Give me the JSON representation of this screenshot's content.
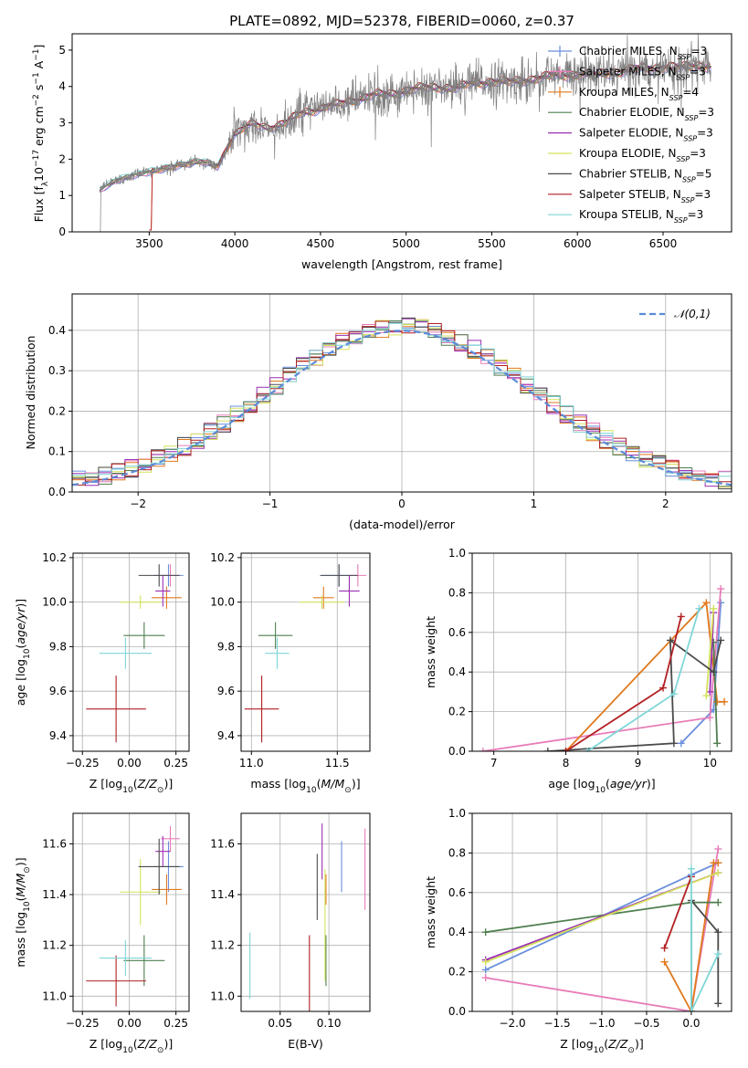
{
  "figure_title": "PLATE=0892, MJD=52378, FIBERID=0060, z=0.37",
  "colors": {
    "Chabrier MILES": "#6a8fdc",
    "Salpeter MILES": "#e87cb8",
    "Kroupa MILES": "#e0791d",
    "Chabrier ELODIE": "#4f7f4f",
    "Salpeter ELODIE": "#9b2fb3",
    "Kroupa ELODIE": "#d4e25a",
    "Chabrier STELIB": "#4a4a4a",
    "Salpeter STELIB": "#b21f22",
    "Kroupa STELIB": "#7fd6d6",
    "data": "#808080",
    "normal": "#5b8bd9",
    "grid": "#b0b0b0"
  },
  "chart_data": [
    {
      "id": "spectrum",
      "type": "line",
      "title": "PLATE=0892, MJD=52378, FIBERID=0060, z=0.37",
      "xlabel": "wavelength [Angstrom, rest frame]",
      "ylabel": "Flux [f_λ 10^-17 erg cm^-2 s^-1 A^-1]",
      "xlim": [
        3050,
        6900
      ],
      "ylim": [
        0,
        5.45
      ],
      "xticks": [
        3500,
        4000,
        4500,
        5000,
        5500,
        6000,
        6500
      ],
      "yticks": [
        0,
        1,
        2,
        3,
        4,
        5
      ],
      "grid": false,
      "legend_position": "top-right",
      "continuum": {
        "x": [
          3210,
          3300,
          3400,
          3500,
          3600,
          3700,
          3800,
          3900,
          4000,
          4100,
          4200,
          4300,
          4400,
          4500,
          4600,
          4700,
          4800,
          4900,
          5000,
          5100,
          5200,
          5300,
          5400,
          5500,
          5600,
          5700,
          5800,
          5900,
          6000,
          6100,
          6200,
          6300,
          6400,
          6500,
          6600,
          6700,
          6780
        ],
        "y": [
          1.15,
          1.4,
          1.55,
          1.65,
          1.75,
          1.85,
          1.95,
          1.8,
          2.7,
          2.95,
          2.9,
          3.0,
          3.3,
          3.4,
          3.5,
          3.65,
          3.75,
          3.8,
          3.9,
          3.95,
          4.0,
          3.95,
          4.1,
          4.15,
          4.1,
          4.2,
          4.25,
          4.3,
          4.35,
          4.3,
          4.4,
          4.45,
          4.5,
          4.55,
          4.5,
          4.6,
          4.55
        ]
      },
      "series": [
        {
          "name": "Chabrier MILES, N_SSP=3",
          "label_main": "Chabrier MILES, N",
          "label_sub": "SSP",
          "label_tail": "=3"
        },
        {
          "name": "Salpeter MILES, N_SSP=3",
          "label_main": "Salpeter MILES, N",
          "label_sub": "SSP",
          "label_tail": "=3"
        },
        {
          "name": "Kroupa MILES, N_SSP=4",
          "label_main": "Kroupa MILES, N",
          "label_sub": "SSP",
          "label_tail": "=4"
        },
        {
          "name": "Chabrier ELODIE, N_SSP=3",
          "label_main": "Chabrier ELODIE, N",
          "label_sub": "SSP",
          "label_tail": "=3"
        },
        {
          "name": "Salpeter ELODIE, N_SSP=3",
          "label_main": "Salpeter ELODIE, N",
          "label_sub": "SSP",
          "label_tail": "=3"
        },
        {
          "name": "Kroupa ELODIE, N_SSP=3",
          "label_main": "Kroupa ELODIE, N",
          "label_sub": "SSP",
          "label_tail": "=3"
        },
        {
          "name": "Chabrier STELIB, N_SSP=5",
          "label_main": "Chabrier STELIB, N",
          "label_sub": "SSP",
          "label_tail": "=5"
        },
        {
          "name": "Salpeter STELIB, N_SSP=3",
          "label_main": "Salpeter STELIB, N",
          "label_sub": "SSP",
          "label_tail": "=3"
        },
        {
          "name": "Kroupa STELIB, N_SSP=3",
          "label_main": "Kroupa STELIB, N",
          "label_sub": "SSP",
          "label_tail": "=3"
        }
      ]
    },
    {
      "id": "residuals",
      "type": "step-histogram",
      "xlabel": "(data-model)/error",
      "ylabel": "Normed distribution",
      "xlim": [
        -2.5,
        2.5
      ],
      "ylim": [
        0,
        0.49
      ],
      "xticks": [
        -2,
        -1,
        0,
        1,
        2
      ],
      "yticks": [
        0.0,
        0.1,
        0.2,
        0.3,
        0.4
      ],
      "grid": true,
      "bin_width": 0.1,
      "legend": "𝒩(0,1)",
      "legend_position": "top-right"
    },
    {
      "id": "age-Z",
      "type": "errorbar",
      "xlabel": "Z [log10(Z/Z⊙)]",
      "ylabel": "age [log10(age/yr)]",
      "xlim": [
        -0.3,
        0.32
      ],
      "ylim": [
        9.33,
        10.22
      ],
      "xticks": [
        -0.25,
        0.0,
        0.25
      ],
      "yticks": [
        9.4,
        9.6,
        9.8,
        10.0,
        10.2
      ],
      "grid": true,
      "points": [
        {
          "series": "Chabrier MILES",
          "x": 0.21,
          "xerr": 0.08,
          "y": 10.12,
          "yerr": 0.05
        },
        {
          "series": "Salpeter MILES",
          "x": 0.22,
          "xerr": 0.05,
          "y": 10.12,
          "yerr": 0.05
        },
        {
          "series": "Kroupa MILES",
          "x": 0.2,
          "xerr": 0.08,
          "y": 10.02,
          "yerr": 0.05
        },
        {
          "series": "Chabrier ELODIE",
          "x": 0.08,
          "xerr": 0.11,
          "y": 9.85,
          "yerr": 0.06
        },
        {
          "series": "Salpeter ELODIE",
          "x": 0.18,
          "xerr": 0.04,
          "y": 10.05,
          "yerr": 0.07
        },
        {
          "series": "Kroupa ELODIE",
          "x": 0.06,
          "xerr": 0.11,
          "y": 10.0,
          "yerr": 0.03
        },
        {
          "series": "Chabrier STELIB",
          "x": 0.16,
          "xerr": 0.11,
          "y": 10.12,
          "yerr": 0.05
        },
        {
          "series": "Salpeter STELIB",
          "x": -0.07,
          "xerr": 0.16,
          "y": 9.52,
          "yerr": 0.15
        },
        {
          "series": "Kroupa STELIB",
          "x": -0.02,
          "xerr": 0.14,
          "y": 9.77,
          "yerr": 0.07
        }
      ]
    },
    {
      "id": "age-mass",
      "type": "errorbar",
      "xlabel": "mass [log10(M/M⊙)]",
      "ylabel": "",
      "xlim": [
        10.94,
        11.69
      ],
      "ylim": [
        9.33,
        10.22
      ],
      "xticks": [
        11.0,
        11.5
      ],
      "yticks": [
        9.4,
        9.6,
        9.8,
        10.0,
        10.2
      ],
      "grid": true,
      "points": [
        {
          "series": "Chabrier MILES",
          "x": 11.51,
          "xerr": 0.1,
          "y": 10.12,
          "yerr": 0.05
        },
        {
          "series": "Salpeter MILES",
          "x": 11.62,
          "xerr": 0.05,
          "y": 10.12,
          "yerr": 0.05
        },
        {
          "series": "Kroupa MILES",
          "x": 11.42,
          "xerr": 0.06,
          "y": 10.02,
          "yerr": 0.05
        },
        {
          "series": "Chabrier ELODIE",
          "x": 11.14,
          "xerr": 0.1,
          "y": 9.85,
          "yerr": 0.06
        },
        {
          "series": "Salpeter ELODIE",
          "x": 11.57,
          "xerr": 0.06,
          "y": 10.05,
          "yerr": 0.07
        },
        {
          "series": "Kroupa ELODIE",
          "x": 11.41,
          "xerr": 0.13,
          "y": 10.0,
          "yerr": 0.03
        },
        {
          "series": "Chabrier STELIB",
          "x": 11.51,
          "xerr": 0.11,
          "y": 10.12,
          "yerr": 0.05
        },
        {
          "series": "Salpeter STELIB",
          "x": 11.06,
          "xerr": 0.1,
          "y": 9.52,
          "yerr": 0.15
        },
        {
          "series": "Kroupa STELIB",
          "x": 11.15,
          "xerr": 0.07,
          "y": 9.77,
          "yerr": 0.07
        }
      ]
    },
    {
      "id": "weight-age",
      "type": "line",
      "xlabel": "age [log10(age/yr)]",
      "ylabel": "mass weight",
      "xlim": [
        6.7,
        10.3
      ],
      "ylim": [
        0,
        1
      ],
      "xticks": [
        7,
        8,
        9,
        10
      ],
      "yticks": [
        0.0,
        0.2,
        0.4,
        0.6,
        0.8,
        1.0
      ],
      "grid": true,
      "series": [
        {
          "series": "Chabrier MILES",
          "x": [
            9.6,
            10.05,
            10.15
          ],
          "y": [
            0.04,
            0.21,
            0.75
          ]
        },
        {
          "series": "Salpeter MILES",
          "x": [
            6.85,
            10.0,
            10.15
          ],
          "y": [
            0.0,
            0.17,
            0.82
          ]
        },
        {
          "series": "Kroupa MILES",
          "x": [
            8.0,
            9.95,
            10.1,
            10.2
          ],
          "y": [
            0.0,
            0.75,
            0.25,
            0.25
          ]
        },
        {
          "series": "Chabrier ELODIE",
          "x": [
            10.05,
            10.1
          ],
          "y": [
            0.55,
            0.04
          ]
        },
        {
          "series": "Salpeter ELODIE",
          "x": [
            10.0,
            10.05
          ],
          "y": [
            0.3,
            0.7
          ]
        },
        {
          "series": "Kroupa ELODIE",
          "x": [
            9.95,
            10.05
          ],
          "y": [
            0.28,
            0.72
          ]
        },
        {
          "series": "Chabrier STELIB",
          "x": [
            7.75,
            9.5,
            9.45,
            10.05,
            10.15
          ],
          "y": [
            0.0,
            0.04,
            0.56,
            0.4,
            0.56
          ]
        },
        {
          "series": "Salpeter STELIB",
          "x": [
            8.0,
            9.35,
            9.6
          ],
          "y": [
            0.0,
            0.32,
            0.68
          ]
        },
        {
          "series": "Kroupa STELIB",
          "x": [
            8.3,
            9.5,
            9.85
          ],
          "y": [
            0.0,
            0.29,
            0.72
          ]
        }
      ]
    },
    {
      "id": "mass-Z",
      "type": "errorbar",
      "xlabel": "Z [log10(Z/Z⊙)]",
      "ylabel": "mass [log10(M/M⊙)]",
      "xlim": [
        -0.3,
        0.32
      ],
      "ylim": [
        10.94,
        11.72
      ],
      "xticks": [
        -0.25,
        0.0,
        0.25
      ],
      "yticks": [
        11.0,
        11.2,
        11.4,
        11.6
      ],
      "grid": true,
      "points": [
        {
          "series": "Chabrier MILES",
          "x": 0.21,
          "xerr": 0.08,
          "y": 11.51,
          "yerr": 0.1
        },
        {
          "series": "Salpeter MILES",
          "x": 0.22,
          "xerr": 0.05,
          "y": 11.62,
          "yerr": 0.05
        },
        {
          "series": "Kroupa MILES",
          "x": 0.2,
          "xerr": 0.08,
          "y": 11.42,
          "yerr": 0.06
        },
        {
          "series": "Chabrier ELODIE",
          "x": 0.08,
          "xerr": 0.11,
          "y": 11.14,
          "yerr": 0.1
        },
        {
          "series": "Salpeter ELODIE",
          "x": 0.18,
          "xerr": 0.04,
          "y": 11.57,
          "yerr": 0.06
        },
        {
          "series": "Kroupa ELODIE",
          "x": 0.06,
          "xerr": 0.11,
          "y": 11.41,
          "yerr": 0.13
        },
        {
          "series": "Chabrier STELIB",
          "x": 0.16,
          "xerr": 0.11,
          "y": 11.51,
          "yerr": 0.11
        },
        {
          "series": "Salpeter STELIB",
          "x": -0.07,
          "xerr": 0.16,
          "y": 11.06,
          "yerr": 0.1
        },
        {
          "series": "Kroupa STELIB",
          "x": -0.02,
          "xerr": 0.14,
          "y": 11.15,
          "yerr": 0.07
        }
      ]
    },
    {
      "id": "mass-ebv",
      "type": "errorbar",
      "xlabel": "E(B-V)",
      "ylabel": "",
      "xlim": [
        0.01,
        0.142
      ],
      "ylim": [
        10.94,
        11.72
      ],
      "xticks": [
        0.05,
        0.1
      ],
      "yticks": [
        11.0,
        11.2,
        11.4,
        11.6
      ],
      "grid": true,
      "points": [
        {
          "series": "Chabrier MILES",
          "x": 0.113,
          "y": 11.51,
          "yerr": 0.1
        },
        {
          "series": "Salpeter MILES",
          "x": 0.137,
          "y": 11.5,
          "yerr": 0.16
        },
        {
          "series": "Kroupa MILES",
          "x": 0.097,
          "y": 11.42,
          "yerr": 0.06
        },
        {
          "series": "Chabrier ELODIE",
          "x": 0.097,
          "y": 11.14,
          "yerr": 0.1
        },
        {
          "series": "Salpeter ELODIE",
          "x": 0.093,
          "y": 11.57,
          "yerr": 0.11
        },
        {
          "series": "Kroupa ELODIE",
          "x": 0.096,
          "y": 11.28,
          "yerr": 0.22
        },
        {
          "series": "Chabrier STELIB",
          "x": 0.088,
          "y": 11.43,
          "yerr": 0.13
        },
        {
          "series": "Salpeter STELIB",
          "x": 0.08,
          "y": 11.06,
          "yerr": 0.18
        },
        {
          "series": "Kroupa STELIB",
          "x": 0.019,
          "y": 11.12,
          "yerr": 0.13
        }
      ]
    },
    {
      "id": "weight-Z",
      "type": "line",
      "xlabel": "Z [log10(Z/Z⊙)]",
      "ylabel": "mass weight",
      "xlim": [
        -2.45,
        0.45
      ],
      "ylim": [
        0,
        1
      ],
      "xticks": [
        -2.0,
        -1.5,
        -1.0,
        -0.5,
        0.0
      ],
      "yticks": [
        0.0,
        0.2,
        0.4,
        0.6,
        0.8,
        1.0
      ],
      "grid": true,
      "series": [
        {
          "series": "Chabrier MILES",
          "x": [
            -2.3,
            0.0,
            0.3
          ],
          "y": [
            0.21,
            0.69,
            0.75
          ]
        },
        {
          "series": "Salpeter MILES",
          "x": [
            -2.3,
            0.0,
            0.3
          ],
          "y": [
            0.17,
            0.0,
            0.82
          ]
        },
        {
          "series": "Kroupa MILES",
          "x": [
            -0.3,
            0.0,
            0.25,
            0.3
          ],
          "y": [
            0.25,
            0.0,
            0.75,
            0.75
          ]
        },
        {
          "series": "Chabrier ELODIE",
          "x": [
            -2.3,
            0.0,
            0.3
          ],
          "y": [
            0.4,
            0.55,
            0.55
          ]
        },
        {
          "series": "Salpeter ELODIE",
          "x": [
            -2.3,
            0.3
          ],
          "y": [
            0.26,
            0.7
          ]
        },
        {
          "series": "Kroupa ELODIE",
          "x": [
            -2.3,
            0.3
          ],
          "y": [
            0.25,
            0.7
          ]
        },
        {
          "series": "Chabrier STELIB",
          "x": [
            0.0,
            0.0,
            0.3,
            0.3
          ],
          "y": [
            0.0,
            0.56,
            0.4,
            0.04
          ]
        },
        {
          "series": "Salpeter STELIB",
          "x": [
            -0.3,
            0.0
          ],
          "y": [
            0.32,
            0.68
          ]
        },
        {
          "series": "Kroupa STELIB",
          "x": [
            0.0,
            0.0,
            0.3
          ],
          "y": [
            0.72,
            0.0,
            0.29
          ]
        }
      ]
    }
  ]
}
